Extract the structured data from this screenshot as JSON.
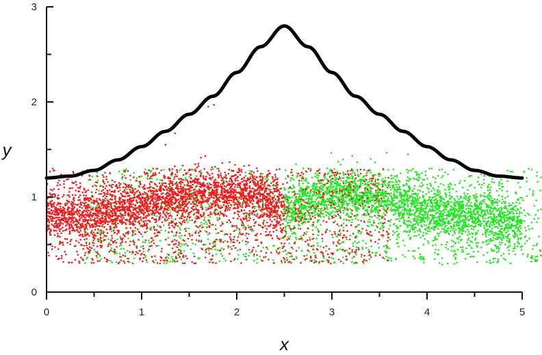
{
  "chart_data": {
    "type": "scatter",
    "xlabel": "x",
    "ylabel": "y",
    "xlim": [
      0,
      5
    ],
    "ylim": [
      0,
      3
    ],
    "x_ticks": [
      0,
      1,
      2,
      3,
      4,
      5
    ],
    "y_ticks": [
      0,
      1,
      2,
      3
    ],
    "x_tick_labels": [
      "0",
      "1",
      "2",
      "3",
      "4",
      "5"
    ],
    "y_tick_labels": [
      "0",
      "1",
      "2",
      "3"
    ],
    "grid": false,
    "colors": {
      "curve": "#000000",
      "red": "#ee1c1c",
      "green": "#22e622"
    },
    "curve": {
      "x": [
        0,
        0.25,
        0.5,
        0.75,
        1.0,
        1.25,
        1.5,
        1.75,
        2.0,
        2.25,
        2.5,
        2.75,
        3.0,
        3.25,
        3.5,
        3.75,
        4.0,
        4.25,
        4.5,
        4.75,
        5.0
      ],
      "y": [
        1.2,
        1.22,
        1.28,
        1.39,
        1.53,
        1.69,
        1.87,
        2.06,
        2.31,
        2.58,
        2.8,
        2.58,
        2.31,
        2.06,
        1.87,
        1.69,
        1.53,
        1.39,
        1.28,
        1.22,
        1.2
      ]
    },
    "red_points": {
      "band_x": [
        0.0,
        0.5,
        1.0,
        1.5,
        1.75,
        2.25,
        2.5
      ],
      "band_y": [
        0.8,
        0.82,
        0.9,
        1.02,
        1.05,
        1.0,
        0.85
      ],
      "cloud_x_range": [
        0.0,
        3.6
      ],
      "cloud_y_range": [
        0.3,
        1.3
      ],
      "outliers": [
        {
          "x": 1.7,
          "y": 1.95
        },
        {
          "x": 1.76,
          "y": 1.97
        },
        {
          "x": 1.35,
          "y": 1.67
        },
        {
          "x": 1.25,
          "y": 1.55
        }
      ]
    },
    "green_points": {
      "band_x": [
        2.5,
        3.0,
        3.5,
        4.0,
        4.5,
        5.0
      ],
      "band_y": [
        0.85,
        1.05,
        1.0,
        0.85,
        0.8,
        0.72
      ],
      "cloud_x_range": [
        0.4,
        5.2
      ],
      "cloud_y_range": [
        0.3,
        1.3
      ],
      "outliers": [
        {
          "x": 3.8,
          "y": 1.45
        },
        {
          "x": 4.05,
          "y": 1.3
        },
        {
          "x": 2.7,
          "y": 1.3
        }
      ]
    }
  }
}
